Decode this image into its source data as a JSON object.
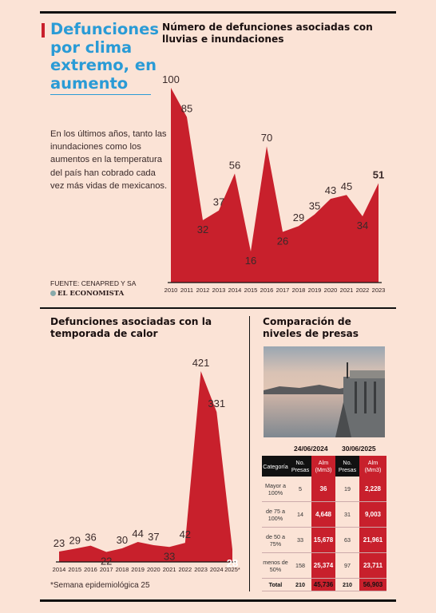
{
  "headline": "Defunciones\npor clima\nextremo, en\naumento",
  "intro": "En los últimos años, tanto las inundaciones como los aumentos en la temperatura del país han cobrado cada vez más vidas de mexicanos.",
  "source": {
    "label": "FUENTE: CENAPRED Y SA",
    "logo": "EL ECONOMISTA"
  },
  "chart_data": [
    {
      "type": "area",
      "title": "Número de defunciones asociadas con lluvias e inundaciones",
      "x": [
        "2010",
        "2011",
        "2012",
        "2013",
        "2014",
        "2015",
        "2016",
        "2017",
        "2018",
        "2019",
        "2020",
        "2021",
        "2022",
        "2023"
      ],
      "values": [
        100,
        85,
        32,
        37,
        56,
        16,
        70,
        26,
        29,
        35,
        43,
        45,
        34,
        51
      ],
      "highlight_last": true,
      "color": "#c8202c"
    },
    {
      "type": "area",
      "title": "Defunciones asociadas con la temporada de calor",
      "x": [
        "2014",
        "2015",
        "2016",
        "2017",
        "2018",
        "2019",
        "2020",
        "2021",
        "2022",
        "2023",
        "2024",
        "2025*"
      ],
      "values": [
        23,
        29,
        36,
        22,
        30,
        44,
        37,
        33,
        42,
        421,
        331,
        28
      ],
      "highlight_last": true,
      "color": "#c8202c",
      "footnote": "*Semana epidemiológica 25"
    }
  ],
  "dams": {
    "title": "Comparación de niveles de presas",
    "date_a": "24/06/2024",
    "date_b": "30/06/2025",
    "headers": [
      "Categoría",
      "No. Presas",
      "Alm (Mm3)",
      "No. Presas",
      "Alm (Mm3)"
    ],
    "rows": [
      {
        "cat": "Mayor a 100%",
        "n1": "5",
        "a1": "36",
        "n2": "19",
        "a2": "2,228"
      },
      {
        "cat": "de 75 a 100%",
        "n1": "14",
        "a1": "4,648",
        "n2": "31",
        "a2": "9,003"
      },
      {
        "cat": "de 50 a 75%",
        "n1": "33",
        "a1": "15,678",
        "n2": "63",
        "a2": "21,961"
      },
      {
        "cat": "menos de 50%",
        "n1": "158",
        "a1": "25,374",
        "n2": "97",
        "a2": "23,711"
      }
    ],
    "total": {
      "cat": "Total",
      "n1": "210",
      "a1": "45,736",
      "n2": "210",
      "a2": "56,903"
    }
  }
}
